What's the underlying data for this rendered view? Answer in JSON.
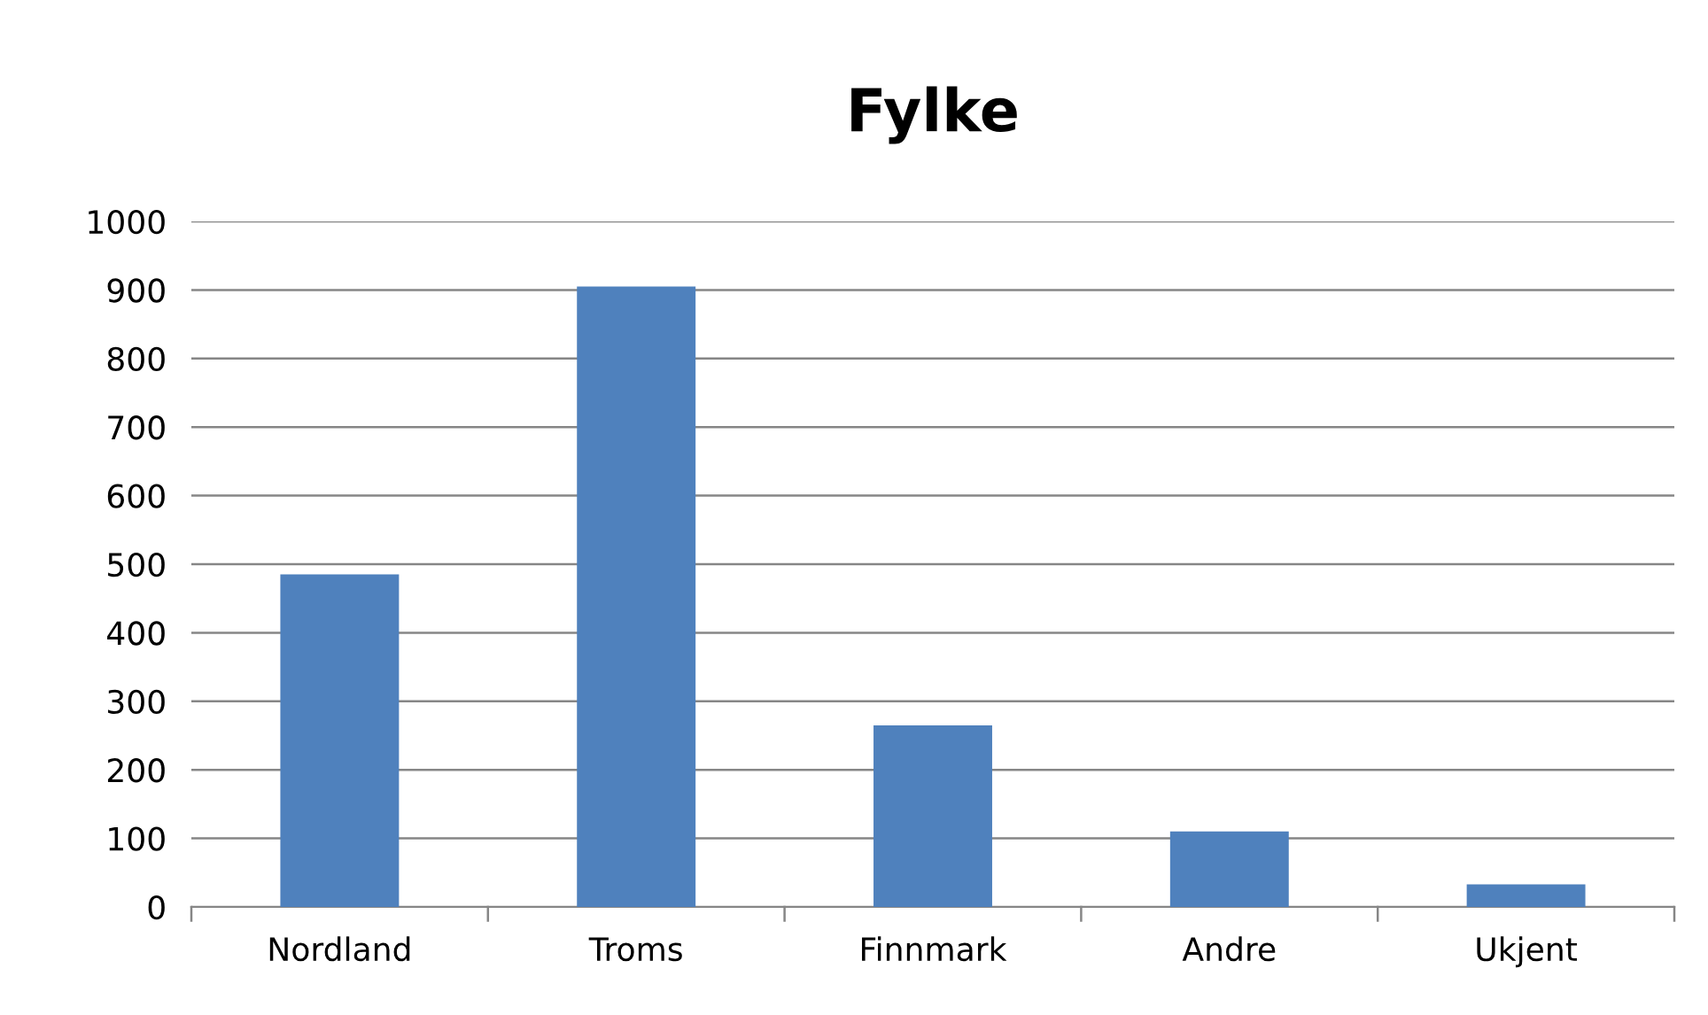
{
  "chart_data": {
    "type": "bar",
    "title": "Fylke",
    "categories": [
      "Nordland",
      "Troms",
      "Finnmark",
      "Andre",
      "Ukjent"
    ],
    "values": [
      485,
      905,
      265,
      110,
      33
    ],
    "color": "#4f81bd",
    "ylim": [
      0,
      1000
    ],
    "yticks": [
      0,
      100,
      200,
      300,
      400,
      500,
      600,
      700,
      800,
      900,
      1000
    ],
    "grid": "y",
    "legend": false
  }
}
